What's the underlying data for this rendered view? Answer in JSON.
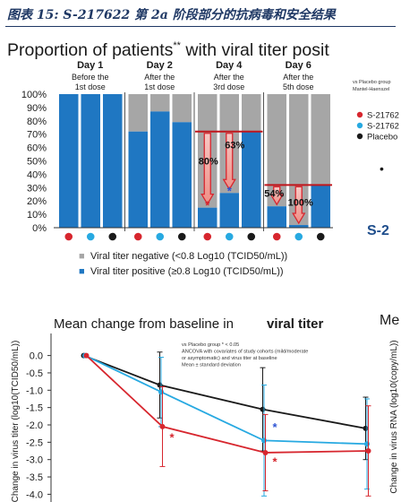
{
  "caption": "图表 15:  S-217622 第 2a 阶段部分的抗病毒和安全结果",
  "header": {
    "title_main": "Proportion of patients",
    "title_super": "**",
    "title_tail": " with viral titer posit",
    "right_note_1": "vs Placebo group",
    "right_note_2": "Mantel-Haenszel",
    "right_legend": [
      {
        "label": "S-21762",
        "color": "#d7262e"
      },
      {
        "label": "S-21762",
        "color": "#27a9e1"
      },
      {
        "label": "Placebo",
        "color": "#1a1a1a"
      }
    ],
    "right_bullet": "•",
    "right_big_s": "S-2",
    "right_me": "Me",
    "right_axis_label": "Change in virus RNA (log10(copy/mL))"
  },
  "chart_data": [
    {
      "type": "bar",
      "title": "Proportion of patients** with viral titer posit",
      "stacked": true,
      "groups": [
        {
          "day": "Day 1",
          "sub1": "Before the",
          "sub2": "1st dose"
        },
        {
          "day": "Day 2",
          "sub1": "After the",
          "sub2": "1st dose"
        },
        {
          "day": "Day 4",
          "sub1": "After the",
          "sub2": "3rd dose"
        },
        {
          "day": "Day 6",
          "sub1": "After the",
          "sub2": "5th dose"
        }
      ],
      "bar_order": [
        "red",
        "blue",
        "black"
      ],
      "group_marker_colors": [
        "#d7262e",
        "#27a9e1",
        "#1a1a1a"
      ],
      "series": [
        {
          "name": "Viral titer negative (<0.8 Log10 (TCID50/mL))",
          "color": "#a6a6a6"
        },
        {
          "name": "Viral titer positive (≥0.8 Log10 (TCID50/mL))",
          "color": "#1f77c2"
        }
      ],
      "positive_percent": [
        [
          100,
          100,
          100
        ],
        [
          72,
          87,
          79
        ],
        [
          15,
          26,
          72
        ],
        [
          16,
          2,
          32
        ]
      ],
      "y_ticks": [
        "0%",
        "10%",
        "20%",
        "30%",
        "40%",
        "50%",
        "60%",
        "70%",
        "80%",
        "90%",
        "100%"
      ],
      "ylim": [
        0,
        100
      ],
      "annotations": [
        {
          "group": 2,
          "text": "80%"
        },
        {
          "group": 2,
          "text": "63%"
        },
        {
          "group": 3,
          "text": "54%"
        },
        {
          "group": 3,
          "text": "100%"
        }
      ],
      "star_red": "*",
      "star_blue": "*",
      "legend_square": "■"
    },
    {
      "type": "line",
      "title_plain": "Mean change from baseline in ",
      "title_bold": "viral titer",
      "ylabel": "Change in virus titer (log10(TCID50/mL))",
      "y_ticks": [
        "0.0",
        "-0.5",
        "-1.0",
        "-1.5",
        "-2.0",
        "-2.5",
        "-3.0",
        "-3.5",
        "-4.0"
      ],
      "ylim": [
        -4.3,
        0.3
      ],
      "notes": [
        "vs Placebo group * < 0.05",
        "ANCOVA with covariates of study cohorts (mild/moderate",
        "or asymptomatic) and virus titer at baseline",
        "Mean ± standard deviation"
      ],
      "x": [
        1,
        2,
        4,
        6
      ],
      "series": [
        {
          "color": "#1a1a1a",
          "values": [
            0.0,
            -0.85,
            -1.55,
            -2.1
          ],
          "err": [
            0,
            0.95,
            1.2,
            0.9
          ]
        },
        {
          "color": "#27a9e1",
          "values": [
            0.0,
            -1.05,
            -2.45,
            -2.55
          ],
          "err": [
            0,
            1.0,
            1.6,
            1.3
          ]
        },
        {
          "color": "#d7262e",
          "values": [
            0.0,
            -2.05,
            -2.8,
            -2.75
          ],
          "err": [
            0,
            1.15,
            1.1,
            1.3
          ]
        }
      ],
      "stars": [
        {
          "x": 2,
          "y": -2.35,
          "color": "#d7262e",
          "text": "*"
        },
        {
          "x": 4,
          "y": -2.05,
          "color": "#2f55d4",
          "text": "*"
        },
        {
          "x": 4,
          "y": -3.05,
          "color": "#d7262e",
          "text": "*"
        }
      ]
    }
  ]
}
